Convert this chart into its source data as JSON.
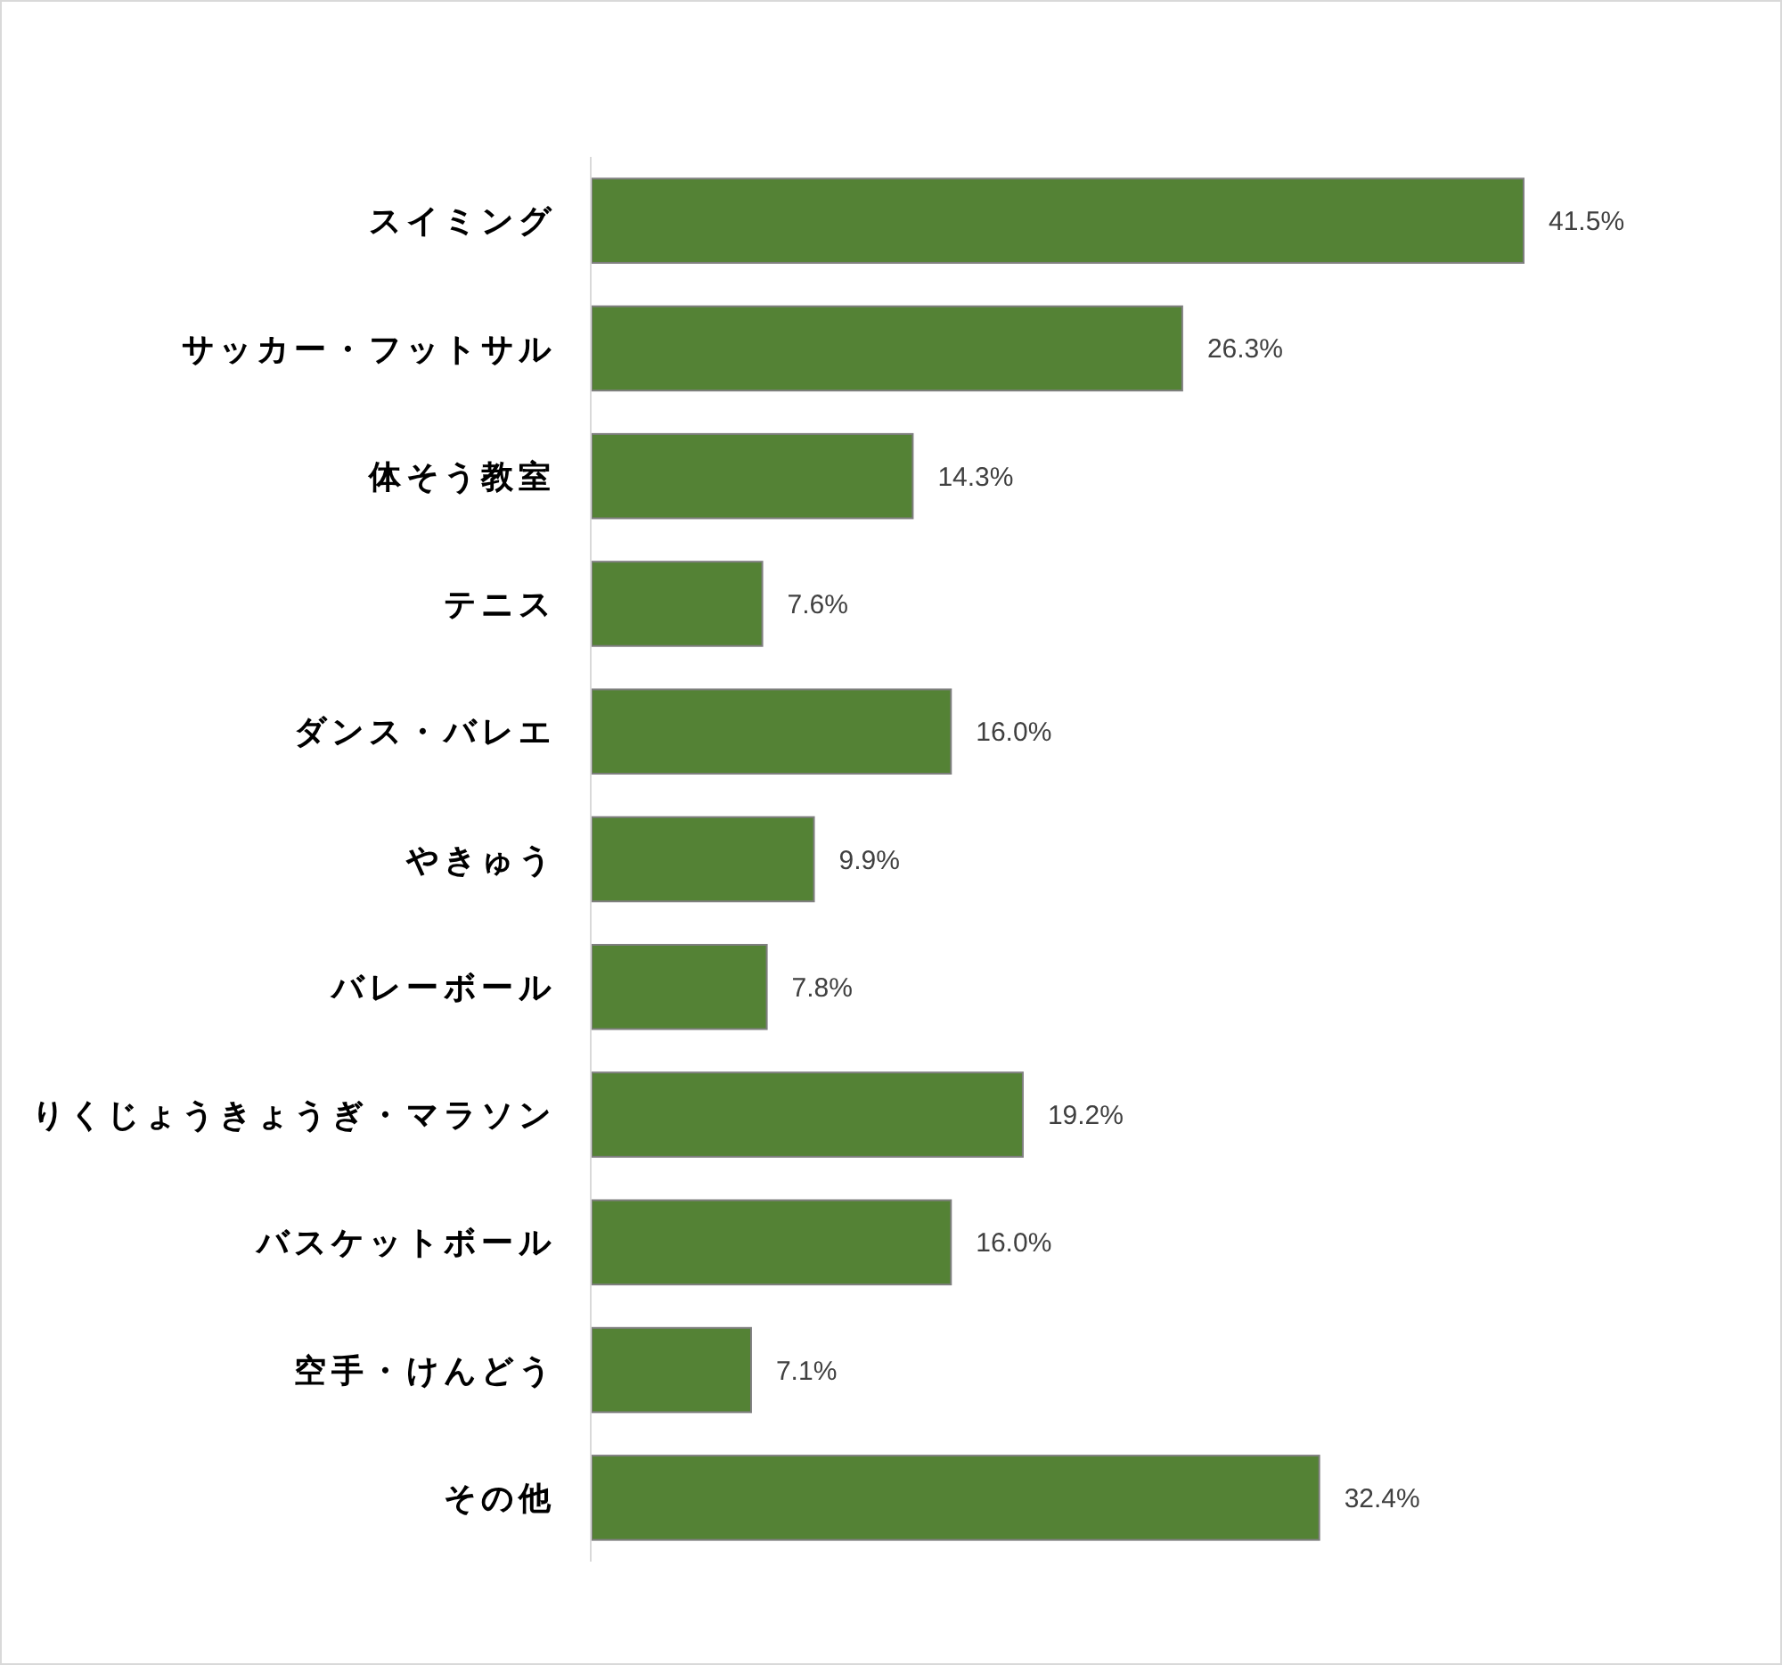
{
  "chart_data": {
    "type": "bar",
    "orientation": "horizontal",
    "categories": [
      "スイミング",
      "サッカー・フットサル",
      "体そう教室",
      "テニス",
      "ダンス・バレエ",
      "やきゅう",
      "バレーボール",
      "りくじょうきょうぎ・マラソン",
      "バスケットボール",
      "空手・けんどう",
      "その他"
    ],
    "values": [
      41.5,
      26.3,
      14.3,
      7.6,
      16.0,
      9.9,
      7.8,
      19.2,
      16.0,
      7.1,
      32.4
    ],
    "value_labels": [
      "41.5%",
      "26.3%",
      "14.3%",
      "7.6%",
      "16.0%",
      "9.9%",
      "7.8%",
      "19.2%",
      "16.0%",
      "7.1%",
      "32.4%"
    ],
    "color": "#548235",
    "tick_labels": "y"
  }
}
